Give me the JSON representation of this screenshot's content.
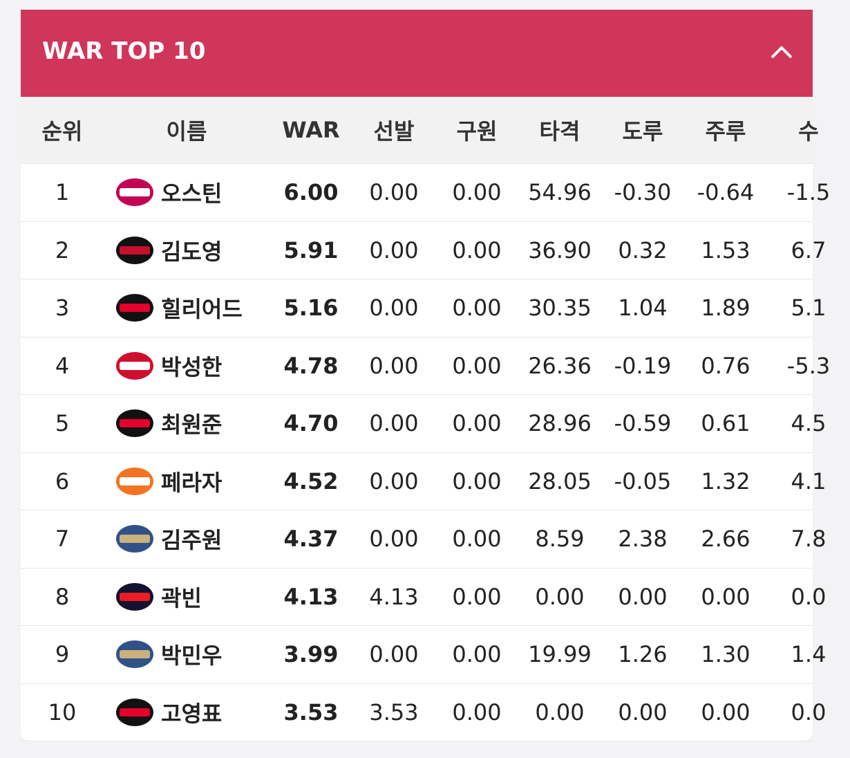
{
  "header": {
    "title": "WAR TOP 10"
  },
  "table": {
    "columns": [
      "순위",
      "이름",
      "WAR",
      "선발",
      "구원",
      "타격",
      "도루",
      "주루",
      "수"
    ],
    "rows": [
      [
        "1",
        "오스틴",
        "6.00",
        "0.00",
        "0.00",
        "54.96",
        "-0.30",
        "-0.64",
        "-1.5"
      ],
      [
        "2",
        "김도영",
        "5.91",
        "0.00",
        "0.00",
        "36.90",
        "0.32",
        "1.53",
        "6.7"
      ],
      [
        "3",
        "힐리어드",
        "5.16",
        "0.00",
        "0.00",
        "30.35",
        "1.04",
        "1.89",
        "5.1"
      ],
      [
        "4",
        "박성한",
        "4.78",
        "0.00",
        "0.00",
        "26.36",
        "-0.19",
        "0.76",
        "-5.3"
      ],
      [
        "5",
        "최원준",
        "4.70",
        "0.00",
        "0.00",
        "28.96",
        "-0.59",
        "0.61",
        "4.5"
      ],
      [
        "6",
        "페라자",
        "4.52",
        "0.00",
        "0.00",
        "28.05",
        "-0.05",
        "1.32",
        "4.1"
      ],
      [
        "7",
        "김주원",
        "4.37",
        "0.00",
        "0.00",
        "8.59",
        "2.38",
        "2.66",
        "7.8"
      ],
      [
        "8",
        "곽빈",
        "4.13",
        "4.13",
        "0.00",
        "0.00",
        "0.00",
        "0.00",
        "0.0"
      ],
      [
        "9",
        "박민우",
        "3.99",
        "0.00",
        "0.00",
        "19.99",
        "1.26",
        "1.30",
        "1.4"
      ],
      [
        "10",
        "고영표",
        "3.53",
        "3.53",
        "0.00",
        "0.00",
        "0.00",
        "0.00",
        "0.0"
      ]
    ]
  }
}
